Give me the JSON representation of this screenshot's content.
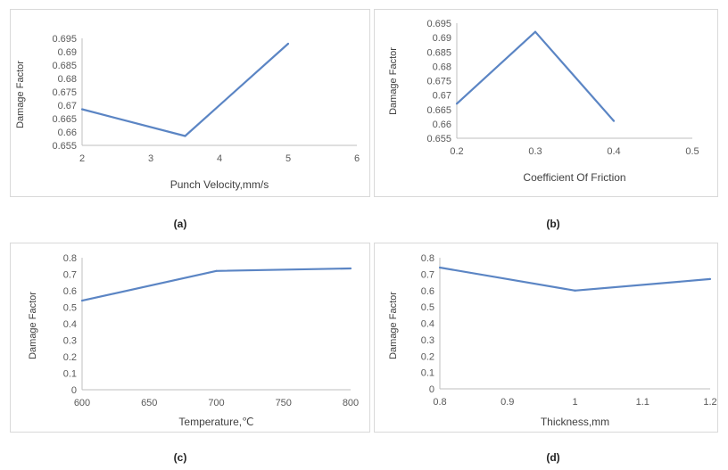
{
  "chart_data": [
    {
      "type": "line",
      "caption": "(a)",
      "xlabel": "Punch Velocity,mm/s",
      "ylabel": "Damage Factor",
      "xlim": [
        2,
        6
      ],
      "ylim": [
        0.655,
        0.695
      ],
      "xticks": [
        "2",
        "3",
        "4",
        "5",
        "6"
      ],
      "yticks": [
        "0.655",
        "0.66",
        "0.665",
        "0.67",
        "0.675",
        "0.68",
        "0.685",
        "0.69",
        "0.695"
      ],
      "x": [
        2,
        3.5,
        5
      ],
      "y": [
        0.6685,
        0.6585,
        0.693
      ],
      "grid": false,
      "color": "#5b85c4"
    },
    {
      "type": "line",
      "caption": "(b)",
      "xlabel": "Coefficient Of Friction",
      "ylabel": "Damage Factor",
      "xlim": [
        0.2,
        0.5
      ],
      "ylim": [
        0.655,
        0.695
      ],
      "xticks": [
        "0.2",
        "0.3",
        "0.4",
        "0.5"
      ],
      "yticks": [
        "0.655",
        "0.66",
        "0.665",
        "0.67",
        "0.675",
        "0.68",
        "0.685",
        "0.69",
        "0.695"
      ],
      "x": [
        0.2,
        0.3,
        0.4
      ],
      "y": [
        0.667,
        0.692,
        0.661
      ],
      "grid": false,
      "color": "#5b85c4"
    },
    {
      "type": "line",
      "caption": "(c)",
      "xlabel": "Temperature,℃",
      "ylabel": "Damage Factor",
      "xlim": [
        600,
        800
      ],
      "ylim": [
        0,
        0.8
      ],
      "xticks": [
        "600",
        "650",
        "700",
        "750",
        "800"
      ],
      "yticks": [
        "0",
        "0.1",
        "0.2",
        "0.3",
        "0.4",
        "0.5",
        "0.6",
        "0.7",
        "0.8"
      ],
      "x": [
        600,
        700,
        800
      ],
      "y": [
        0.54,
        0.72,
        0.735
      ],
      "grid": false,
      "color": "#5b85c4"
    },
    {
      "type": "line",
      "caption": "(d)",
      "xlabel": "Thickness,mm",
      "ylabel": "Damage Factor",
      "xlim": [
        0.8,
        1.2
      ],
      "ylim": [
        0,
        0.8
      ],
      "xticks": [
        "0.8",
        "0.9",
        "1",
        "1.1",
        "1.2"
      ],
      "yticks": [
        "0",
        "0.1",
        "0.2",
        "0.3",
        "0.4",
        "0.5",
        "0.6",
        "0.7",
        "0.8"
      ],
      "x": [
        0.8,
        1,
        1.2
      ],
      "y": [
        0.74,
        0.6,
        0.67
      ],
      "grid": false,
      "color": "#5b85c4"
    }
  ]
}
